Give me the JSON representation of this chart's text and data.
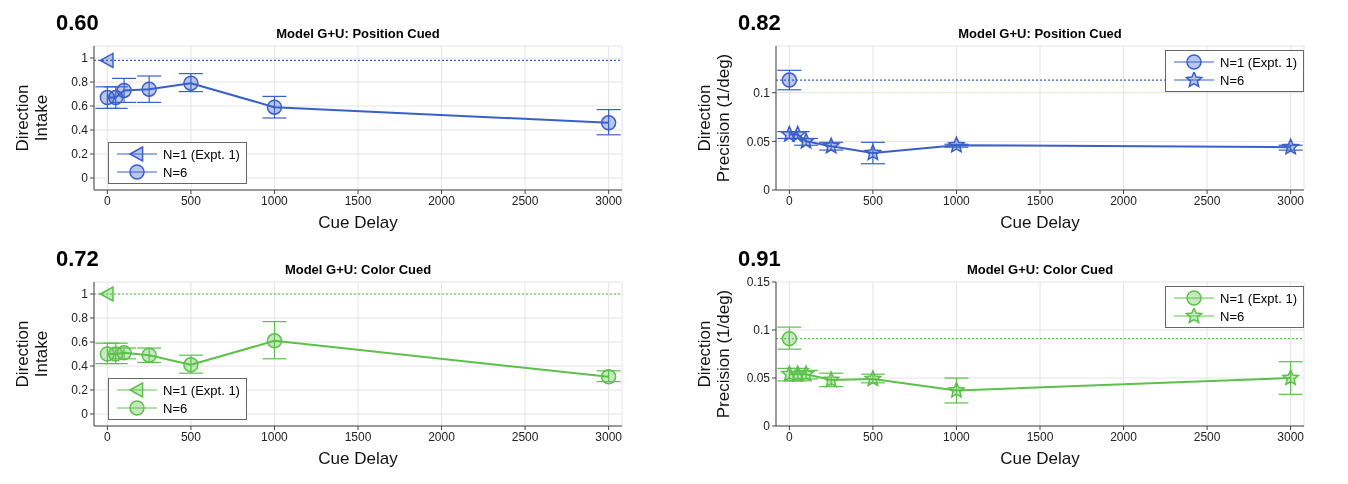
{
  "chart_data": [
    {
      "type": "line",
      "title": "Model G+U: Position Cued",
      "xlabel": "Cue Delay",
      "ylabel": "Direction Intake",
      "annotations": [
        "0.60"
      ],
      "xlim": [
        -80,
        3080
      ],
      "xticks": [
        0,
        500,
        1000,
        1500,
        2000,
        2500,
        3000
      ],
      "ylim": [
        -0.1,
        1.1
      ],
      "yticks": [
        0,
        0.2,
        0.4,
        0.6,
        0.8,
        1
      ],
      "grid": true,
      "legend": "bottom left",
      "ref_lines": [
        {
          "axis": "y",
          "value": 0.98,
          "color": "#3a5fc8",
          "line_style": "dotted"
        }
      ],
      "series": [
        {
          "name": "N=1 (Expt. 1)",
          "color": "#3a5fc8",
          "marker": "triangle",
          "x": [
            0
          ],
          "values": [
            0.98
          ]
        },
        {
          "name": "N=6",
          "color": "#3a5fc8",
          "marker": "circle",
          "x": [
            0,
            50,
            100,
            250,
            500,
            1000,
            3000
          ],
          "values": [
            0.67,
            0.67,
            0.73,
            0.74,
            0.79,
            0.59,
            0.46
          ],
          "errors": [
            [
              0.58,
              0.76
            ],
            [
              0.58,
              0.76
            ],
            [
              0.63,
              0.83
            ],
            [
              0.63,
              0.85
            ],
            [
              0.72,
              0.87
            ],
            [
              0.5,
              0.68
            ],
            [
              0.36,
              0.57
            ]
          ]
        }
      ]
    },
    {
      "type": "line",
      "title": "Model G+U: Position Cued",
      "xlabel": "Cue Delay",
      "ylabel": "Direction Precision (1/deg)",
      "annotations": [
        "0.82"
      ],
      "xlim": [
        -80,
        3080
      ],
      "xticks": [
        0,
        500,
        1000,
        1500,
        2000,
        2500,
        3000
      ],
      "ylim": [
        0,
        0.148
      ],
      "yticks": [
        0,
        0.05,
        0.1
      ],
      "grid": true,
      "legend": "top right",
      "ref_lines": [
        {
          "axis": "y",
          "value": 0.113,
          "color": "#3a5fc8",
          "line_style": "dotted"
        }
      ],
      "series": [
        {
          "name": "N=1 (Expt. 1)",
          "color": "#3a5fc8",
          "marker": "circle",
          "x": [
            0
          ],
          "values": [
            0.113
          ],
          "errors": [
            [
              0.103,
              0.123
            ]
          ]
        },
        {
          "name": "N=6",
          "color": "#3a5fc8",
          "marker": "star",
          "x": [
            0,
            50,
            100,
            250,
            500,
            1000,
            3000
          ],
          "values": [
            0.057,
            0.057,
            0.05,
            0.045,
            0.038,
            0.046,
            0.044
          ],
          "errors": [
            [
              0.053,
              0.06
            ],
            [
              0.053,
              0.06
            ],
            [
              0.046,
              0.053
            ],
            [
              0.041,
              0.049
            ],
            [
              0.027,
              0.049
            ],
            [
              0.044,
              0.047
            ],
            [
              0.041,
              0.046
            ]
          ]
        }
      ]
    },
    {
      "type": "line",
      "title": "Model G+U: Color Cued",
      "xlabel": "Cue Delay",
      "ylabel": "Direction Intake",
      "annotations": [
        "0.72"
      ],
      "xlim": [
        -80,
        3080
      ],
      "xticks": [
        0,
        500,
        1000,
        1500,
        2000,
        2500,
        3000
      ],
      "ylim": [
        -0.1,
        1.1
      ],
      "yticks": [
        0,
        0.2,
        0.4,
        0.6,
        0.8,
        1
      ],
      "grid": true,
      "legend": "bottom left",
      "ref_lines": [
        {
          "axis": "y",
          "value": 1,
          "color": "#5cc04a",
          "line_style": "dotted"
        }
      ],
      "series": [
        {
          "name": "N=1 (Expt. 1)",
          "color": "#5cc04a",
          "marker": "triangle",
          "x": [
            0
          ],
          "values": [
            1
          ]
        },
        {
          "name": "N=6",
          "color": "#5cc04a",
          "marker": "circle",
          "x": [
            0,
            50,
            100,
            250,
            500,
            1000,
            3000
          ],
          "values": [
            0.5,
            0.5,
            0.51,
            0.49,
            0.41,
            0.61,
            0.31
          ],
          "errors": [
            [
              0.42,
              0.59
            ],
            [
              0.42,
              0.59
            ],
            [
              0.46,
              0.55
            ],
            [
              0.43,
              0.55
            ],
            [
              0.34,
              0.49
            ],
            [
              0.46,
              0.77
            ],
            [
              0.27,
              0.36
            ]
          ]
        }
      ]
    },
    {
      "type": "line",
      "title": "Model G+U: Color Cued",
      "xlabel": "Cue Delay",
      "ylabel": "Direction Precision (1/deg)",
      "annotations": [
        "0.91"
      ],
      "xlim": [
        -80,
        3080
      ],
      "xticks": [
        0,
        500,
        1000,
        1500,
        2000,
        2500,
        3000
      ],
      "ylim": [
        0,
        0.15
      ],
      "yticks": [
        0,
        0.05,
        0.1,
        0.15
      ],
      "grid": true,
      "legend": "top right",
      "ref_lines": [
        {
          "axis": "y",
          "value": 0.091,
          "color": "#5cc04a",
          "line_style": "dotted"
        }
      ],
      "series": [
        {
          "name": "N=1 (Expt. 1)",
          "color": "#5cc04a",
          "marker": "circle",
          "x": [
            0
          ],
          "values": [
            0.091
          ],
          "errors": [
            [
              0.08,
              0.103
            ]
          ]
        },
        {
          "name": "N=6",
          "color": "#5cc04a",
          "marker": "star",
          "x": [
            0,
            50,
            100,
            250,
            500,
            1000,
            3000
          ],
          "values": [
            0.054,
            0.054,
            0.054,
            0.048,
            0.049,
            0.037,
            0.05
          ],
          "errors": [
            [
              0.047,
              0.06
            ],
            [
              0.047,
              0.06
            ],
            [
              0.049,
              0.058
            ],
            [
              0.041,
              0.055
            ],
            [
              0.045,
              0.054
            ],
            [
              0.024,
              0.05
            ],
            [
              0.033,
              0.067
            ]
          ]
        }
      ]
    }
  ]
}
